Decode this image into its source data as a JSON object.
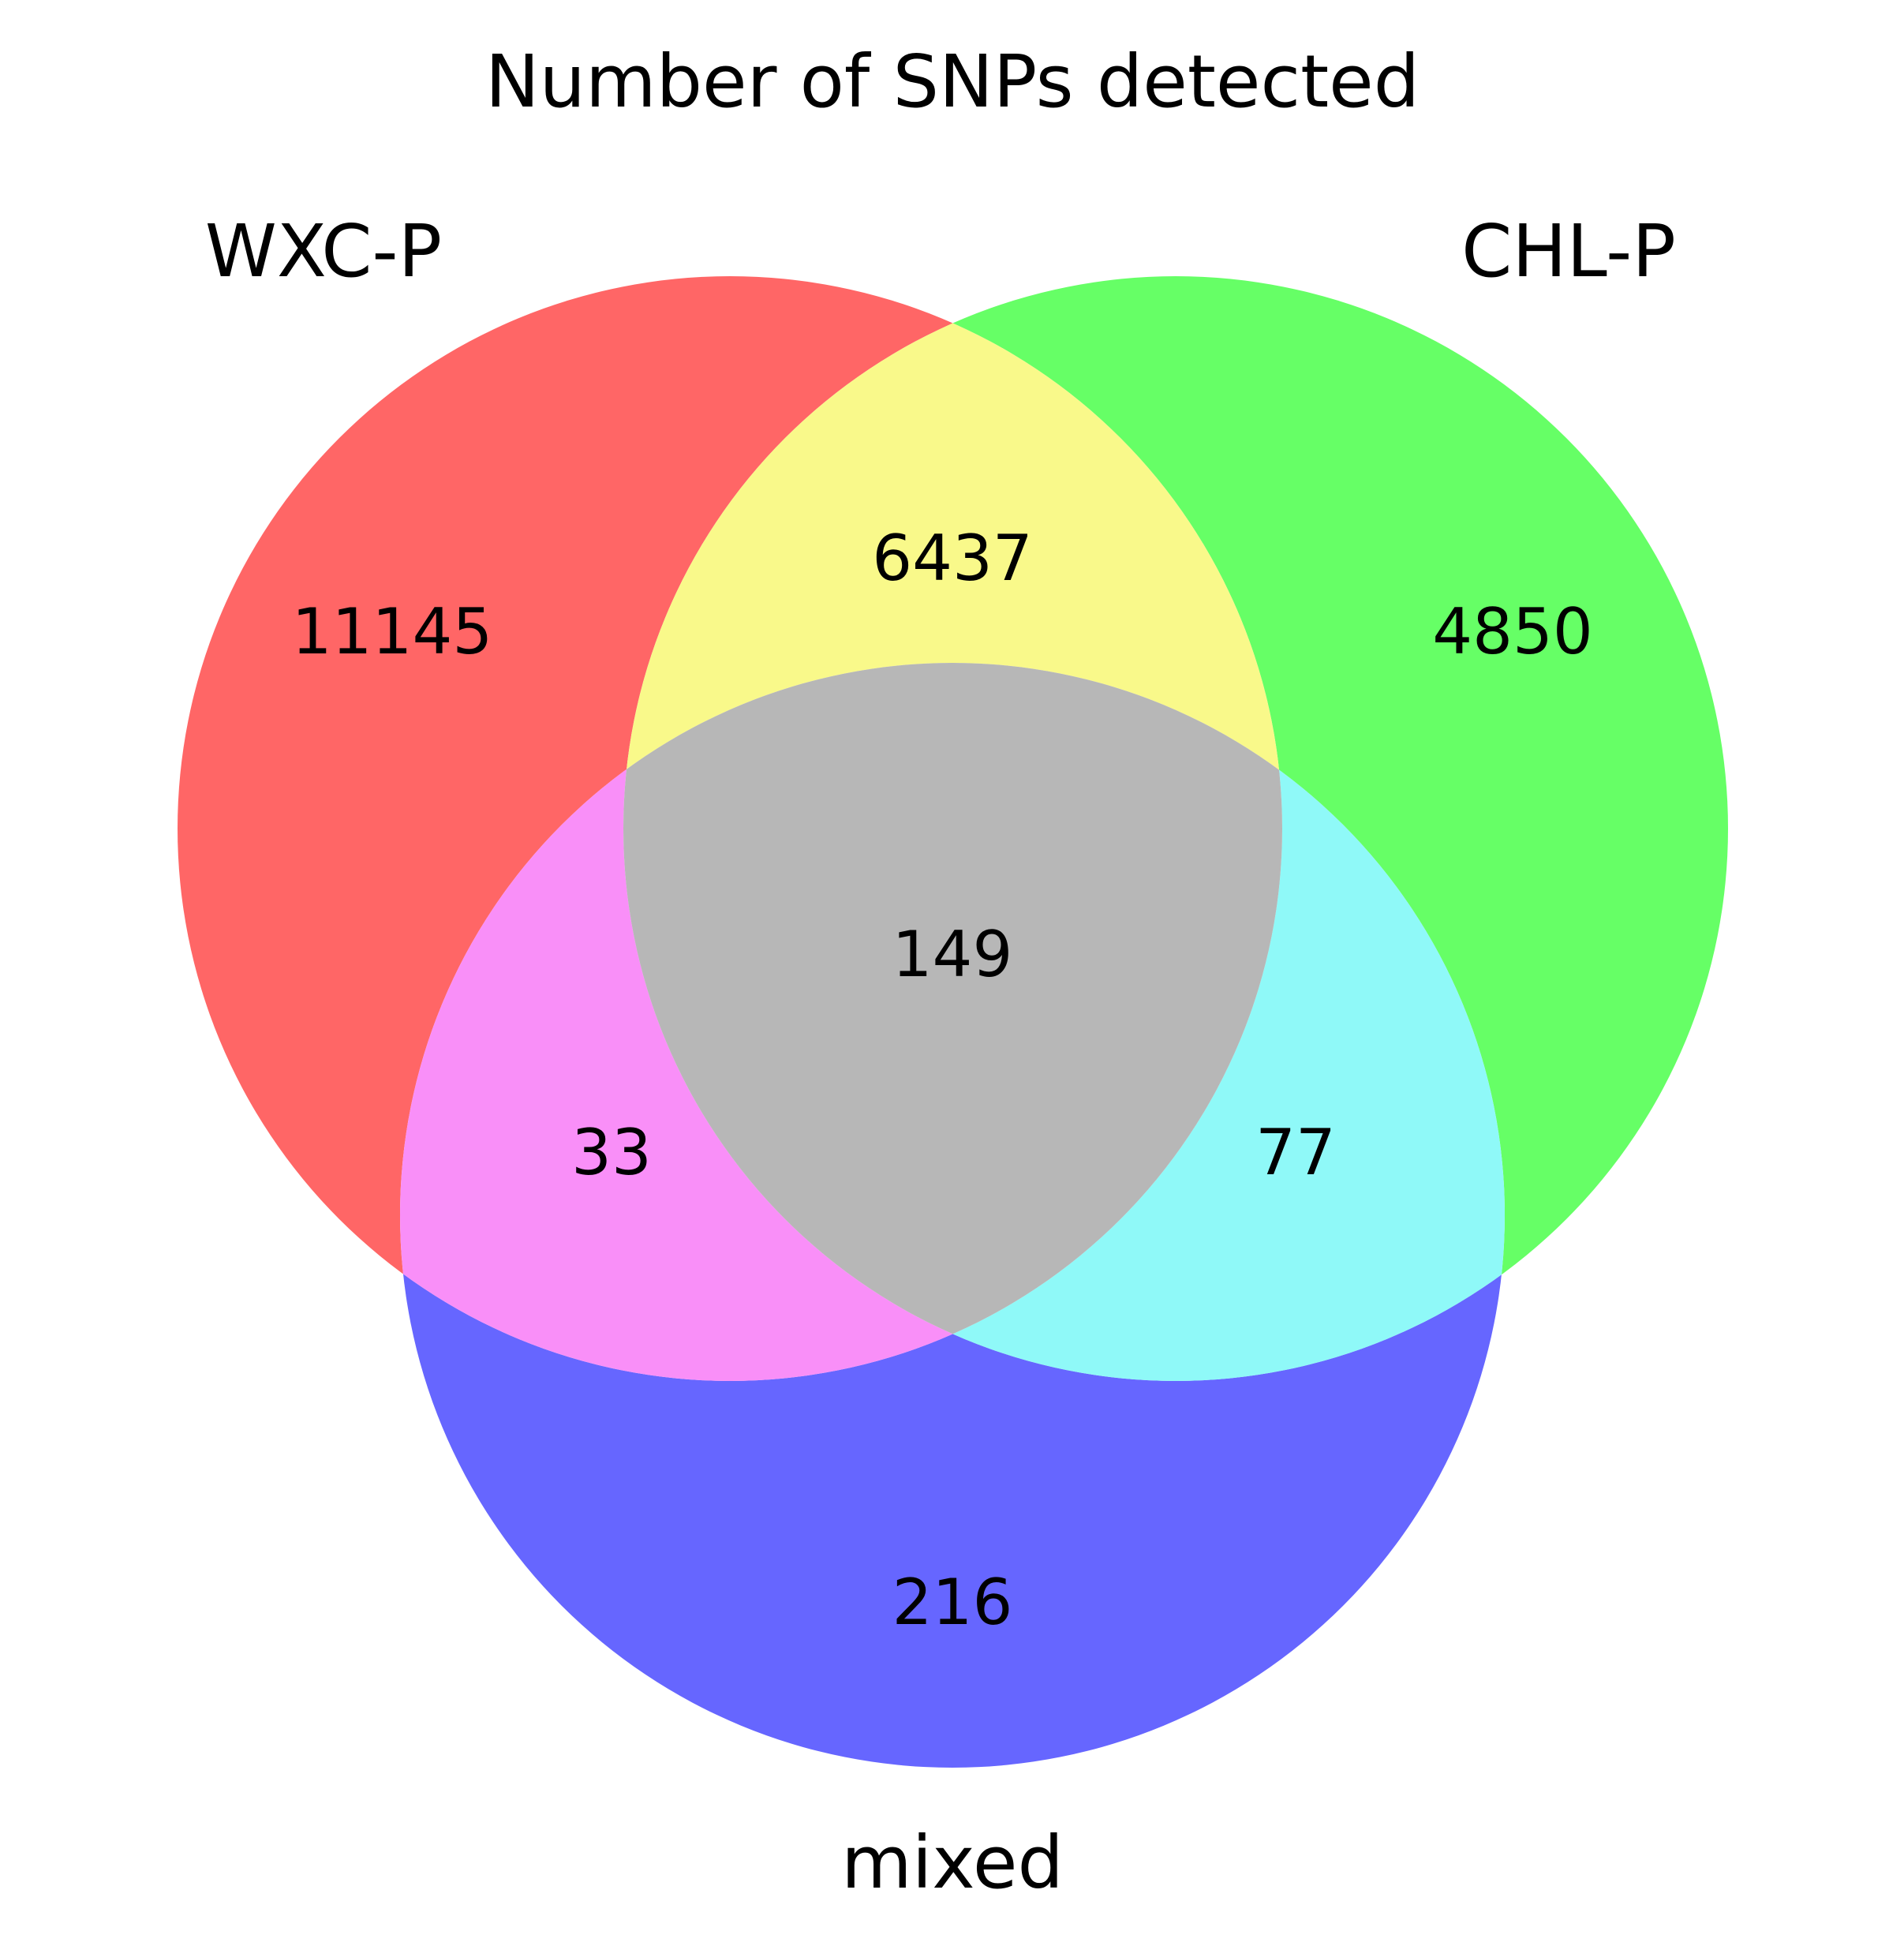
{
  "chart_data": {
    "type": "venn",
    "title": "Number of SNPs detected",
    "sets": [
      {
        "key": "a",
        "name": "WXC-P",
        "color": "#ff0000"
      },
      {
        "key": "b",
        "name": "CHL-P",
        "color": "#00ff00"
      },
      {
        "key": "c",
        "name": "mixed",
        "color": "#0000ff"
      }
    ],
    "regions": [
      {
        "id": "a_only",
        "sets": [
          "WXC-P"
        ],
        "value": "11145",
        "color": "#ff6666"
      },
      {
        "id": "b_only",
        "sets": [
          "CHL-P"
        ],
        "value": "4850",
        "color": "#66ff66"
      },
      {
        "id": "c_only",
        "sets": [
          "mixed"
        ],
        "value": "216",
        "color": "#6666ff"
      },
      {
        "id": "ab",
        "sets": [
          "WXC-P",
          "CHL-P"
        ],
        "value": "6437",
        "color": "#f9f98a"
      },
      {
        "id": "ac",
        "sets": [
          "WXC-P",
          "mixed"
        ],
        "value": "33",
        "color": "#f98ff8"
      },
      {
        "id": "bc",
        "sets": [
          "CHL-P",
          "mixed"
        ],
        "value": "77",
        "color": "#8ff9f8"
      },
      {
        "id": "abc",
        "sets": [
          "WXC-P",
          "CHL-P",
          "mixed"
        ],
        "value": "149",
        "color": "#b7b7b7"
      }
    ]
  }
}
